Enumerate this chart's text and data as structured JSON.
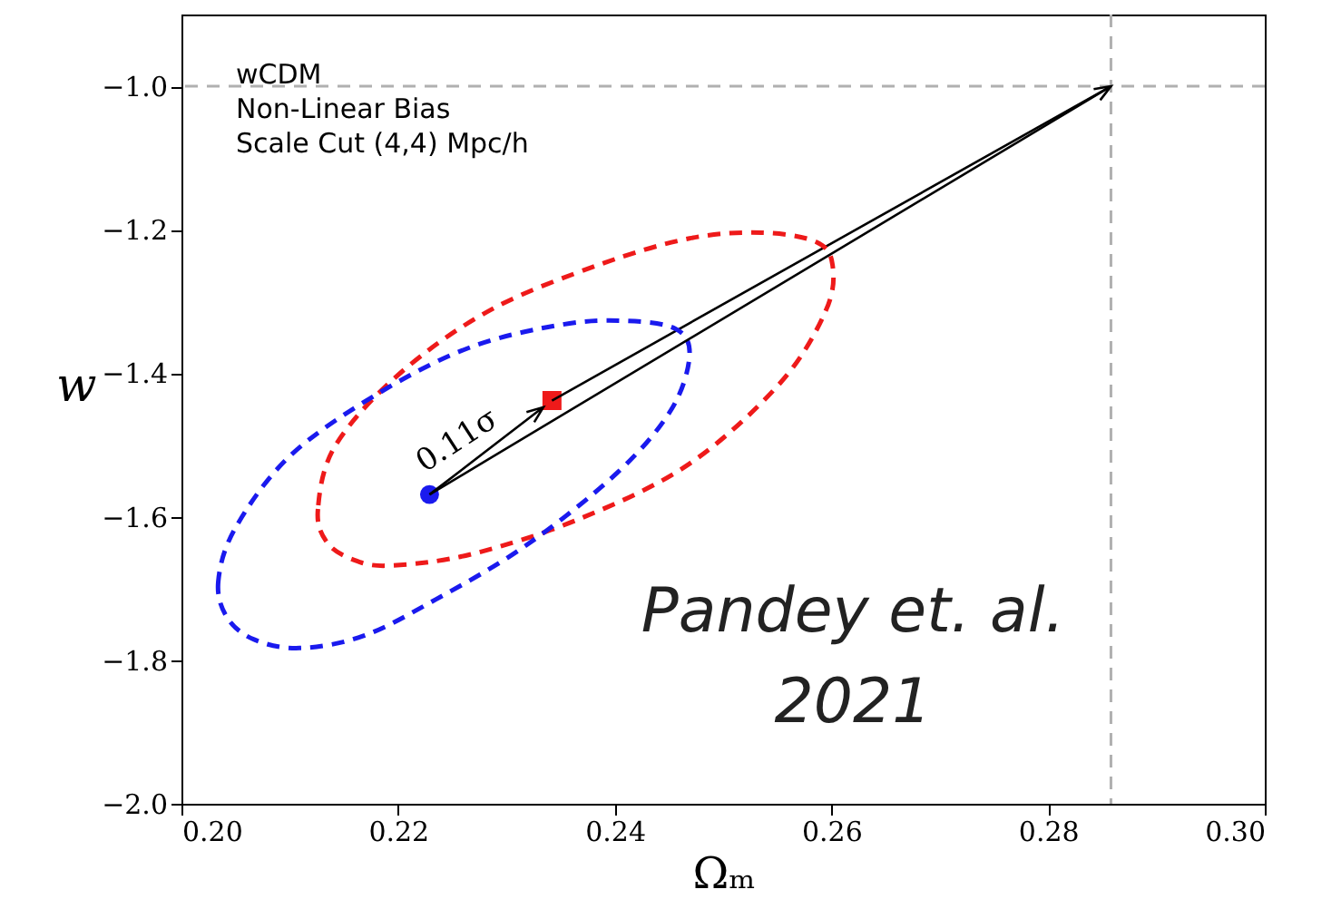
{
  "chart_data": {
    "type": "scatter",
    "xlabel": "Ωₘ",
    "ylabel": "w",
    "xlim": [
      0.2,
      0.3
    ],
    "ylim": [
      -2.0,
      -0.9
    ],
    "xticks": [
      {
        "value": 0.2,
        "label": "0.20"
      },
      {
        "value": 0.22,
        "label": "0.22"
      },
      {
        "value": 0.24,
        "label": "0.24"
      },
      {
        "value": 0.26,
        "label": "0.26"
      },
      {
        "value": 0.28,
        "label": "0.28"
      },
      {
        "value": 0.3,
        "label": "0.30"
      }
    ],
    "yticks": [
      {
        "value": -2.0,
        "label": "−2.0"
      },
      {
        "value": -1.8,
        "label": "−1.8"
      },
      {
        "value": -1.6,
        "label": "−1.6"
      },
      {
        "value": -1.4,
        "label": "−1.4"
      },
      {
        "value": -1.2,
        "label": "−1.2"
      },
      {
        "value": -1.0,
        "label": "−1.0"
      }
    ],
    "series": [
      {
        "color": "#1a1aee",
        "marker": "circle",
        "x": [
          0.2229
        ],
        "values": [
          -1.569
        ]
      },
      {
        "color": "#ee1a1a",
        "marker": "square",
        "x": [
          0.2342
        ],
        "values": [
          -1.438
        ]
      },
      {
        "type": "line",
        "color": "#000000",
        "x": [
          0.2342,
          0.2858
        ],
        "values": [
          -1.438,
          -1.0
        ]
      }
    ],
    "ref_lines": [
      {
        "axis": "x",
        "value": 0.2858,
        "color": "#b0b0b0",
        "line_style": "dashed"
      },
      {
        "axis": "y",
        "value": -1.0,
        "color": "#b0b0b0",
        "line_style": "dashed"
      }
    ],
    "annotations": [
      "wCDM",
      "Non-Linear Bias",
      "Scale Cut (4,4) Mpc/h",
      "Pandey et. al.",
      "2021",
      "0.11σ"
    ],
    "grid": false
  }
}
